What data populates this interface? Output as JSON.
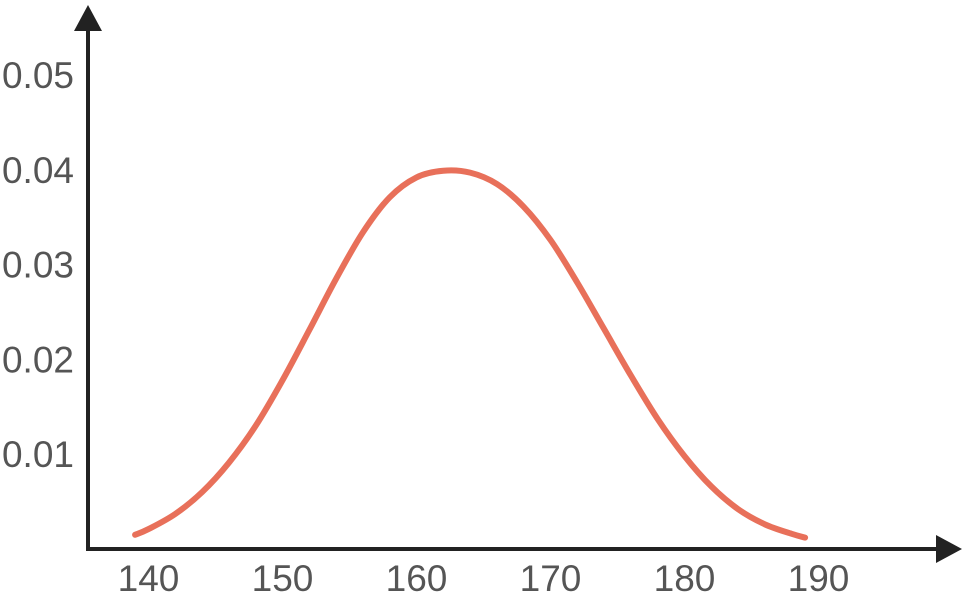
{
  "chart_data": {
    "type": "line",
    "title": "",
    "xlabel": "",
    "ylabel": "",
    "xlim": [
      135,
      197
    ],
    "ylim": [
      0,
      0.056
    ],
    "grid": false,
    "x_ticks": [
      140,
      150,
      160,
      170,
      180,
      190
    ],
    "x_tick_labels": [
      "140",
      "150",
      "160",
      "170",
      "180",
      "190"
    ],
    "y_ticks": [
      0.01,
      0.02,
      0.03,
      0.04,
      0.05
    ],
    "y_tick_labels": [
      "0.01",
      "0.02",
      "0.03",
      "0.04",
      "0.05"
    ],
    "series": [
      {
        "color": "#e8705a",
        "x": [
          139,
          140,
          142,
          144,
          146,
          148,
          150,
          152,
          154,
          156,
          158,
          160,
          162,
          164,
          166,
          168,
          170,
          172,
          174,
          176,
          178,
          180,
          182,
          184,
          186,
          188,
          189
        ],
        "y": [
          0.0015,
          0.0021,
          0.0037,
          0.006,
          0.0091,
          0.013,
          0.0178,
          0.0231,
          0.0285,
          0.0334,
          0.0371,
          0.0392,
          0.0399,
          0.0397,
          0.0385,
          0.0361,
          0.0326,
          0.0281,
          0.0232,
          0.0183,
          0.0137,
          0.0098,
          0.0066,
          0.0042,
          0.0026,
          0.0016,
          0.0012
        ]
      }
    ],
    "axis_color": "#222222",
    "tick_label_color": "#555555"
  }
}
